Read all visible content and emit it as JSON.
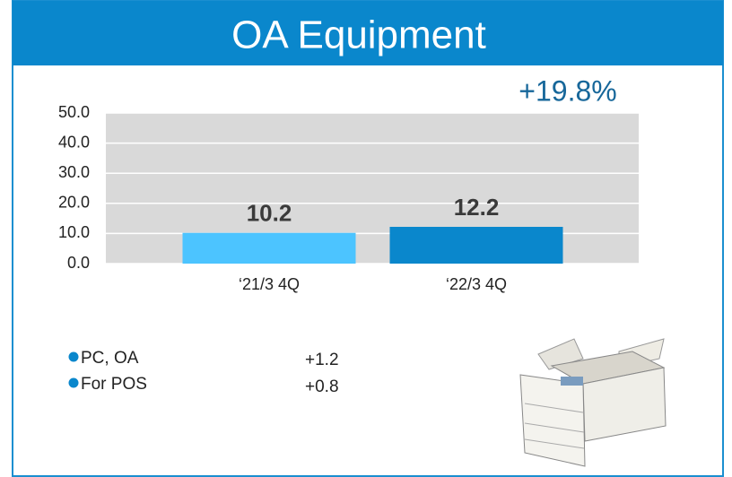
{
  "chart_data": {
    "type": "bar",
    "title": "OA Equipment",
    "annotation": "+19.8%",
    "categories": [
      "‘21/3 4Q",
      "‘22/3 4Q"
    ],
    "values": [
      10.2,
      12.2
    ],
    "colors": [
      "#4cc4ff",
      "#0a87cc"
    ],
    "ylim": [
      0,
      50
    ],
    "yticks": [
      {
        "value": 0,
        "label": "0.0"
      },
      {
        "value": 10,
        "label": "10.0"
      },
      {
        "value": 20,
        "label": "20.0"
      },
      {
        "value": 30,
        "label": "30.0"
      },
      {
        "value": 40,
        "label": "40.0"
      },
      {
        "value": 50,
        "label": "50.0"
      }
    ],
    "grid": true
  },
  "notes": [
    {
      "label": "PC, OA",
      "value": "+1.2"
    },
    {
      "label": "For POS",
      "value": "+0.8"
    }
  ]
}
